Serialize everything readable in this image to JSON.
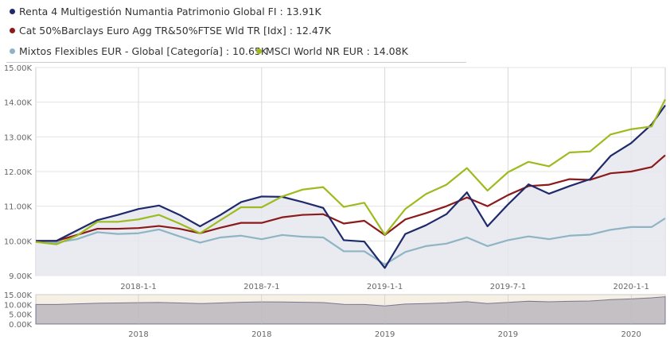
{
  "legend": [
    {
      "label": "Renta 4 Multigestión Numantia Patrimonio Global FI : 13.91K",
      "color": "#1f2a6b"
    },
    {
      "label": "Cat 50%Barclays Euro Agg TR&50%FTSE Wld TR [Idx] : 12.47K",
      "color": "#8b1a1a"
    },
    {
      "label": "Mixtos Flexibles EUR - Global [Categoría] : 10.65K",
      "color": "#8fb4c4"
    },
    {
      "label": "MSCI World NR EUR : 14.08K",
      "color": "#9dbb1f"
    }
  ],
  "chart_data": {
    "type": "line",
    "x_start": "2017-08",
    "x_unit": "month",
    "ylim": [
      9,
      15
    ],
    "yticks": [
      "9.00K",
      "10.00K",
      "11.00K",
      "12.00K",
      "13.00K",
      "14.00K",
      "15.00K"
    ],
    "xticks": [
      {
        "label": "2018-1-1",
        "month": 5
      },
      {
        "label": "2018-7-1",
        "month": 11
      },
      {
        "label": "2019-1-1",
        "month": 17
      },
      {
        "label": "2019-7-1",
        "month": 23
      },
      {
        "label": "2020-1-1",
        "month": 29
      }
    ],
    "series": [
      {
        "name": "Renta 4 Multigestión Numantia Patrimonio Global FI",
        "color": "#1f2a6b",
        "values": [
          10.0,
          10.0,
          10.3,
          10.6,
          10.75,
          10.92,
          11.02,
          10.75,
          10.42,
          10.75,
          11.12,
          11.28,
          11.27,
          11.12,
          10.95,
          10.02,
          9.98,
          9.22,
          10.2,
          10.45,
          10.77,
          11.4,
          10.42,
          11.05,
          11.63,
          11.36,
          11.58,
          11.78,
          12.45,
          12.82,
          13.36,
          13.91
        ]
      },
      {
        "name": "Cat 50%Barclays Euro Agg TR&50%FTSE Wld TR [Idx]",
        "color": "#8b1a1a",
        "values": [
          10.0,
          10.0,
          10.17,
          10.35,
          10.35,
          10.37,
          10.43,
          10.35,
          10.22,
          10.38,
          10.52,
          10.52,
          10.68,
          10.75,
          10.77,
          10.5,
          10.58,
          10.17,
          10.62,
          10.8,
          11.0,
          11.25,
          11.0,
          11.32,
          11.58,
          11.62,
          11.78,
          11.76,
          11.95,
          12.0,
          12.13,
          12.47
        ]
      },
      {
        "name": "Mixtos Flexibles EUR - Global [Categoría]",
        "color": "#8fb4c4",
        "values": [
          9.97,
          9.95,
          10.05,
          10.25,
          10.2,
          10.22,
          10.33,
          10.13,
          9.95,
          10.1,
          10.15,
          10.05,
          10.17,
          10.12,
          10.1,
          9.7,
          9.7,
          9.32,
          9.68,
          9.85,
          9.92,
          10.1,
          9.85,
          10.02,
          10.13,
          10.05,
          10.15,
          10.18,
          10.32,
          10.4,
          10.4,
          10.65
        ]
      },
      {
        "name": "MSCI World NR EUR",
        "color": "#9dbb1f",
        "values": [
          9.97,
          9.9,
          10.15,
          10.55,
          10.55,
          10.62,
          10.75,
          10.5,
          10.22,
          10.6,
          10.97,
          10.97,
          11.28,
          11.48,
          11.55,
          10.98,
          11.1,
          10.18,
          10.92,
          11.35,
          11.62,
          12.1,
          11.45,
          11.98,
          12.28,
          12.15,
          12.55,
          12.58,
          13.07,
          13.22,
          13.3,
          14.08
        ]
      }
    ],
    "navigator": {
      "yticks": [
        "0.00K",
        "5.00K",
        "10.00K",
        "15.00K"
      ],
      "xticks": [
        "2018",
        "2018",
        "2019",
        "2019",
        "2020"
      ]
    }
  }
}
